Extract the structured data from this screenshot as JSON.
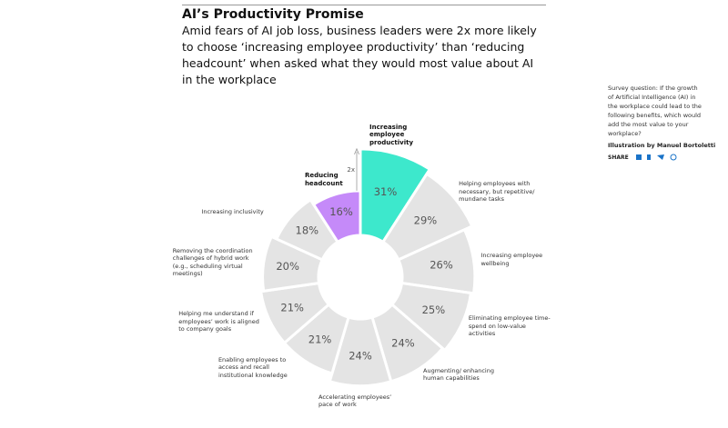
{
  "chart_data": {
    "type": "polar-area",
    "title": "AI’s Productivity Promise",
    "subtitle": "Amid fears of AI job loss, business leaders were 2x more likely to choose ‘increasing employee productivity’ than ‘reducing headcount’ when asked what they would most value about AI in the workplace",
    "categories": [
      "Increasing employee productivity",
      "Helping employees with necessary, but repetitive/ mundane tasks",
      "Increasing employee wellbeing",
      "Eliminating employee time-spend on low-value activities",
      "Augmenting/ enhancing human capabilities",
      "Accelerating employees’ pace of work",
      "Enabling employees to access and recall institutional knowledge",
      "Helping me understand if employees’ work is aligned to company goals",
      "Removing the coordination challenges of hybrid work (e.g., scheduling virtual meetings)",
      "Increasing inclusivity",
      "Reducing headcount"
    ],
    "values": [
      31,
      29,
      26,
      25,
      24,
      24,
      21,
      21,
      20,
      18,
      16
    ],
    "value_labels": [
      "31%",
      "29%",
      "26%",
      "25%",
      "24%",
      "24%",
      "21%",
      "21%",
      "20%",
      "18%",
      "16%"
    ],
    "colors": [
      "#3de8cc",
      "#e4e4e4",
      "#e4e4e4",
      "#e4e4e4",
      "#e4e4e4",
      "#e4e4e4",
      "#e4e4e4",
      "#e4e4e4",
      "#e4e4e4",
      "#e4e4e4",
      "#c58af9"
    ],
    "highlight": [
      0,
      10
    ],
    "annotation": "2x",
    "note": "Survey question: If the growth of Artificial Intelligence (AI) in the workplace could lead to the following benefits, which would add the most value to your workplace?",
    "credit": "Illustration by Manuel Bortoletti",
    "share": "SHARE"
  }
}
